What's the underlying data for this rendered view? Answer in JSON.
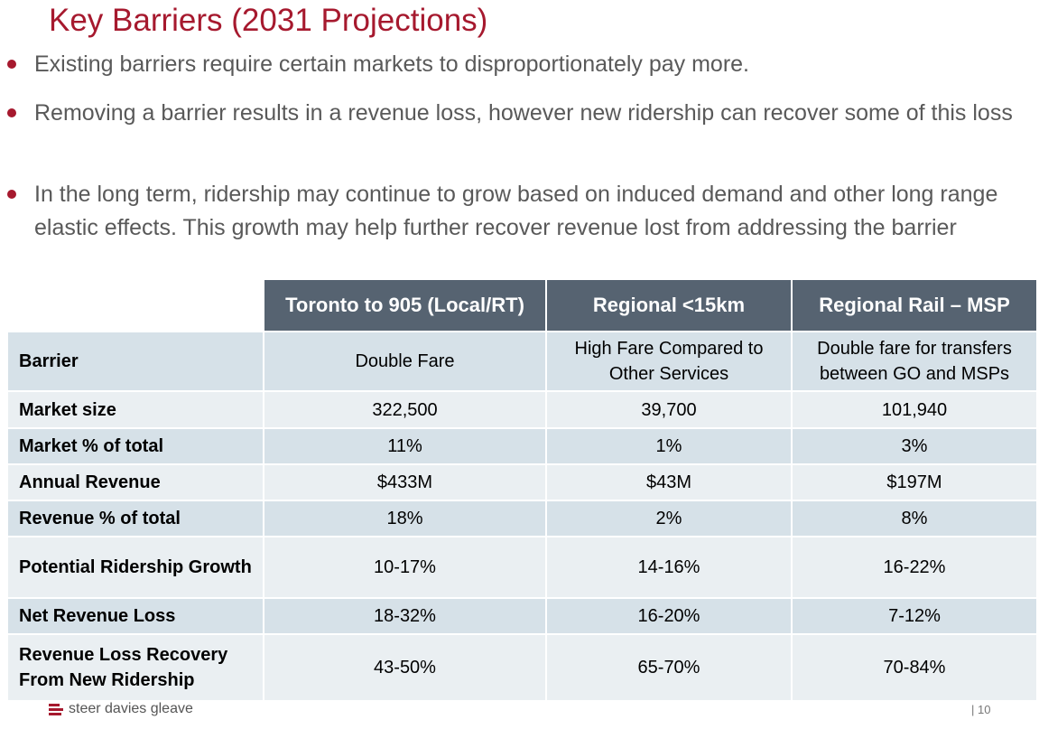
{
  "title": "Key Barriers (2031 Projections)",
  "bullets": [
    "Existing barriers require certain markets to disproportionately pay more.",
    "Removing a barrier results in a revenue loss, however new ridership can recover some of this loss",
    "In the long term, ridership may continue to grow based on induced demand and other long range elastic effects. This growth may help further recover revenue lost from addressing the barrier"
  ],
  "table": {
    "columns": [
      "Toronto to 905 (Local/RT)",
      "Regional <15km",
      "Regional Rail – MSP"
    ],
    "rows": [
      {
        "label": "Barrier",
        "values": [
          "Double Fare",
          "High Fare Compared to Other Services",
          "Double fare for transfers between GO and MSPs"
        ]
      },
      {
        "label": "Market size",
        "values": [
          "322,500",
          "39,700",
          "101,940"
        ]
      },
      {
        "label": "Market % of total",
        "values": [
          "11%",
          "1%",
          "3%"
        ]
      },
      {
        "label": "Annual Revenue",
        "values": [
          "$433M",
          "$43M",
          "$197M"
        ]
      },
      {
        "label": "Revenue % of total",
        "values": [
          "18%",
          "2%",
          "8%"
        ]
      },
      {
        "label": "Potential Ridership Growth",
        "values": [
          "10-17%",
          "14-16%",
          "16-22%"
        ]
      },
      {
        "label": "Net Revenue Loss",
        "values": [
          "18-32%",
          "16-20%",
          "7-12%"
        ]
      },
      {
        "label": "Revenue Loss Recovery From New Ridership",
        "values": [
          "43-50%",
          "65-70%",
          "70-84%"
        ]
      }
    ]
  },
  "footer": {
    "logo_text": "steer davies gleave",
    "page_number": "| 10"
  },
  "colors": {
    "accent": "#a6192e",
    "header_bg": "#566371",
    "row_shade": "#d6e1e8",
    "row_light": "#eaeff2",
    "body_text": "#595959"
  }
}
